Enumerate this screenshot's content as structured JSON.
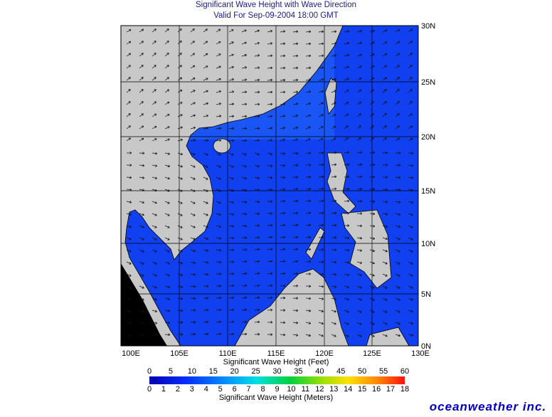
{
  "header": {
    "title": "Significant Wave Height with Wave Direction",
    "subtitle": "Valid For Sep-09-2004 18:00 GMT"
  },
  "map": {
    "lon_labels": [
      "100E",
      "105E",
      "110E",
      "115E",
      "120E",
      "125E",
      "130E"
    ],
    "lat_labels": [
      "30N",
      "25N",
      "20N",
      "15N",
      "10N",
      "5N",
      "0N"
    ]
  },
  "legend": {
    "feet_title": "Significant Wave Height (Feet)",
    "feet_labels": [
      "0",
      "5",
      "10",
      "15",
      "20",
      "25",
      "30",
      "35",
      "40",
      "45",
      "50",
      "55",
      "60"
    ],
    "meters_title": "Significant Wave Height (Meters)",
    "meters_labels": [
      "0",
      "1",
      "2",
      "3",
      "4",
      "5",
      "6",
      "7",
      "8",
      "9",
      "10",
      "11",
      "12",
      "13",
      "14",
      "15",
      "16",
      "17",
      "18"
    ]
  },
  "footer": {
    "logo": "oceanweather inc."
  }
}
